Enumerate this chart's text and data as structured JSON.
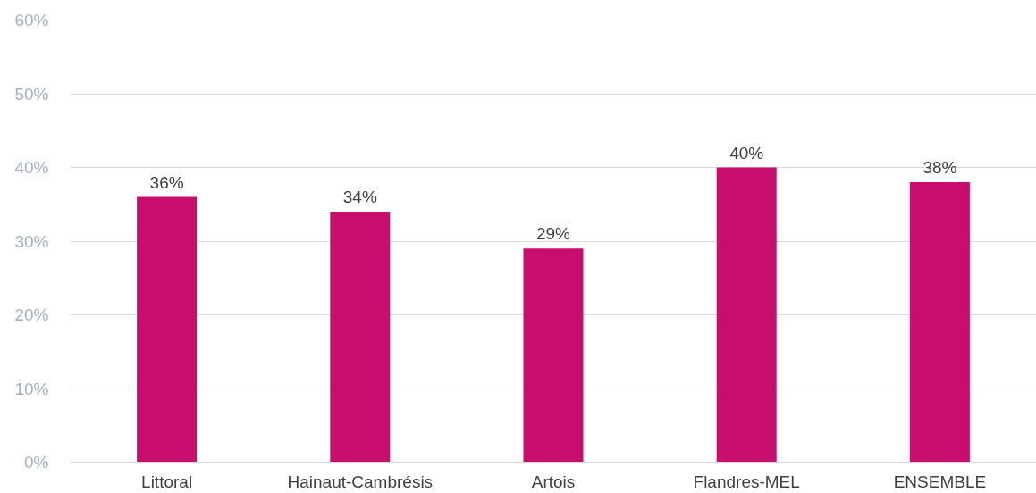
{
  "chart_data": {
    "type": "bar",
    "categories": [
      "Littoral",
      "Hainaut-Cambrésis",
      "Artois",
      "Flandres-MEL",
      "ENSEMBLE"
    ],
    "values": [
      36,
      34,
      29,
      40,
      38
    ],
    "value_labels": [
      "36%",
      "34%",
      "29%",
      "40%",
      "38%"
    ],
    "color": "#c80e6c",
    "ylim": [
      0,
      60
    ],
    "yticks": [
      {
        "value": 0,
        "label": "0%"
      },
      {
        "value": 10,
        "label": "10%"
      },
      {
        "value": 20,
        "label": "20%"
      },
      {
        "value": 30,
        "label": "30%"
      },
      {
        "value": 40,
        "label": "40%"
      },
      {
        "value": 50,
        "label": "50%"
      },
      {
        "value": 60,
        "label": "60%"
      }
    ],
    "grid": "y"
  }
}
